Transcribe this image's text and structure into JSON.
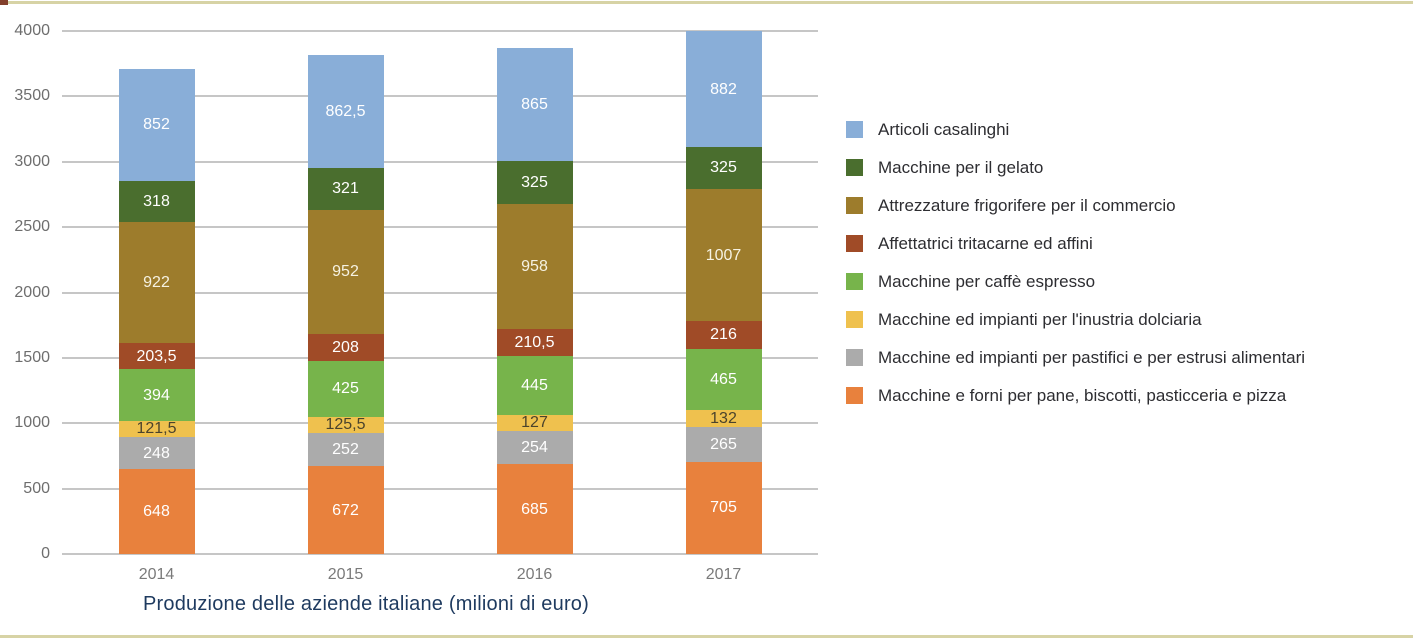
{
  "page": {
    "top_border_color": "#d7d3a5",
    "bottom_border_color": "#d7d3a5",
    "corner_mark_color": "#83402c",
    "background": "#ffffff"
  },
  "chart_data": {
    "type": "bar",
    "stacked": true,
    "title": "Produzione delle aziende italiane (milioni di euro)",
    "title_color": "#1e3a5f",
    "xlabel": "",
    "ylabel": "",
    "categories": [
      "2014",
      "2015",
      "2016",
      "2017"
    ],
    "series": [
      {
        "name": "Macchine e forni per pane, biscotti, pasticceria e pizza",
        "color": "#e8813d",
        "values": [
          648,
          672,
          685,
          705
        ],
        "labels": [
          "648",
          "672",
          "685",
          "705"
        ],
        "label_color": "#ffffff"
      },
      {
        "name": "Macchine ed impianti per pastifici e per estrusi alimentari",
        "color": "#ababab",
        "values": [
          248,
          252,
          254,
          265
        ],
        "labels": [
          "248",
          "252",
          "254",
          "265"
        ],
        "label_color": "#ffffff"
      },
      {
        "name": "Macchine ed impianti per l'inustria dolciaria",
        "color": "#efc14e",
        "values": [
          121.5,
          125.5,
          127,
          132
        ],
        "labels": [
          "121,5",
          "125,5",
          "127",
          "132"
        ],
        "label_color": "#4a432c"
      },
      {
        "name": "Macchine per caffè espresso",
        "color": "#77b44b",
        "values": [
          394,
          425,
          445,
          465
        ],
        "labels": [
          "394",
          "425",
          "445",
          "465"
        ],
        "label_color": "#ffffff"
      },
      {
        "name": "Affettatrici tritacarne ed affini",
        "color": "#a04b27",
        "values": [
          203.5,
          208,
          210.5,
          216
        ],
        "labels": [
          "203,5",
          "208",
          "210,5",
          "216"
        ],
        "label_color": "#ffffff"
      },
      {
        "name": "Attrezzature frigorifere per il commercio",
        "color": "#9d7c2c",
        "values": [
          922,
          952,
          958,
          1007
        ],
        "labels": [
          "922",
          "952",
          "958",
          "1007"
        ],
        "label_color": "#f6f2e2"
      },
      {
        "name": "Macchine per il gelato",
        "color": "#4a6e2e",
        "values": [
          318,
          321,
          325,
          325
        ],
        "labels": [
          "318",
          "321",
          "325",
          "325"
        ],
        "label_color": "#ffffff"
      },
      {
        "name": "Articoli casalinghi",
        "color": "#89aed8",
        "values": [
          852,
          862.5,
          865,
          882
        ],
        "labels": [
          "852",
          "862,5",
          "865",
          "882"
        ],
        "label_color": "#ffffff"
      }
    ],
    "ylim": [
      0,
      4000
    ],
    "yticks": [
      0,
      500,
      1000,
      1500,
      2000,
      2500,
      3000,
      3500,
      4000
    ],
    "ytick_labels": [
      "0",
      "500",
      "1000",
      "1500",
      "2000",
      "2500",
      "3000",
      "3500",
      "4000"
    ],
    "grid": true,
    "legend_position": "right",
    "legend_order_note": "legend lists series top-of-stack first"
  }
}
